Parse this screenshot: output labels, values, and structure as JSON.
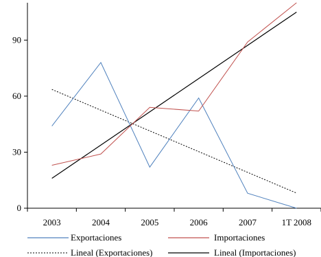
{
  "chart_data": {
    "type": "line",
    "title": "",
    "xlabel": "",
    "ylabel": "",
    "categories": [
      "2003",
      "2004",
      "2005",
      "2006",
      "2007",
      "1T 2008"
    ],
    "y_ticks": [
      0,
      30,
      60,
      90
    ],
    "ylim": [
      0,
      110
    ],
    "grid": false,
    "legend_position": "bottom",
    "series": [
      {
        "name": "Exportaciones",
        "color": "#4f81bd",
        "style": "solid",
        "values": [
          44,
          78,
          22,
          59,
          8,
          0
        ]
      },
      {
        "name": "Importaciones",
        "color": "#c0504d",
        "style": "solid",
        "values": [
          23,
          29,
          54,
          52,
          89,
          110
        ]
      }
    ],
    "trendlines": [
      {
        "name": "Lineal (Exportaciones)",
        "color": "#000000",
        "style": "dotted",
        "values": [
          63.6,
          52.5,
          41.4,
          30.3,
          19.2,
          8.1
        ]
      },
      {
        "name": "Lineal (Importaciones)",
        "color": "#000000",
        "style": "solid",
        "values": [
          16.0,
          33.8,
          51.6,
          69.4,
          87.2,
          105.0
        ]
      }
    ],
    "legend": [
      "Exportaciones",
      "Importaciones",
      "Lineal (Exportaciones)",
      "Lineal (Importaciones)"
    ]
  }
}
